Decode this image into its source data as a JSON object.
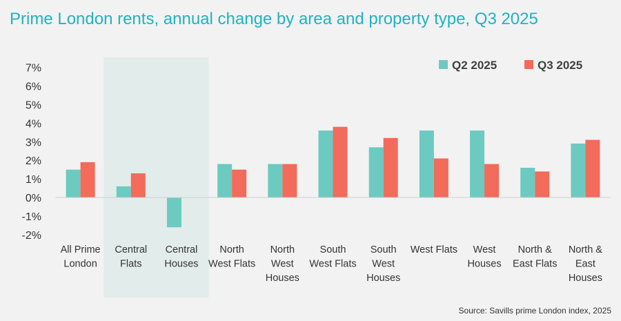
{
  "title": "Prime London rents, annual change by area and property type, Q3 2025",
  "source": "Source: Savills prime London index, 2025",
  "colors": {
    "q2": "#6dcac0",
    "q3": "#f26b5b",
    "highlight": "#e2ecea",
    "title": "#1fb3c0"
  },
  "chart_data": {
    "type": "bar",
    "title": "Prime London rents, annual change by area and property type, Q3 2025",
    "categories": [
      [
        "All Prime",
        "London"
      ],
      [
        "Central",
        "Flats"
      ],
      [
        "Central",
        "Houses"
      ],
      [
        "North",
        "West Flats"
      ],
      [
        "North",
        "West",
        "Houses"
      ],
      [
        "South",
        "West Flats"
      ],
      [
        "South",
        "West",
        "Houses"
      ],
      [
        "West Flats"
      ],
      [
        "West",
        "Houses"
      ],
      [
        "North &",
        "East Flats"
      ],
      [
        "North &",
        "East",
        "Houses"
      ]
    ],
    "series": [
      {
        "name": "Q2 2025",
        "color": "#6dcac0",
        "values": [
          1.5,
          0.6,
          -1.6,
          1.8,
          1.8,
          3.6,
          2.7,
          3.6,
          3.6,
          1.6,
          2.9
        ]
      },
      {
        "name": "Q3 2025",
        "color": "#f26b5b",
        "values": [
          1.9,
          1.3,
          null,
          1.5,
          1.8,
          3.8,
          3.2,
          2.1,
          1.8,
          1.4,
          3.1
        ]
      }
    ],
    "ylim": [
      -2,
      7
    ],
    "yticks": [
      "-2%",
      "-1%",
      "0%",
      "1%",
      "2%",
      "3%",
      "4%",
      "5%",
      "6%",
      "7%"
    ],
    "highlighted_categories": [
      1,
      2
    ],
    "legend_position": "top-right",
    "grid": false
  }
}
